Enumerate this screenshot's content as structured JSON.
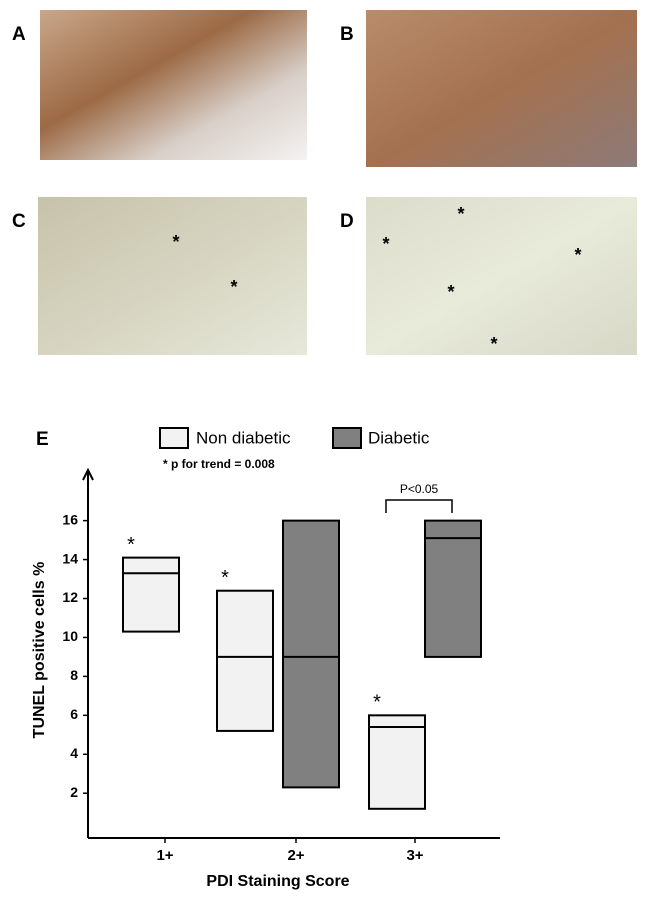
{
  "panels": [
    {
      "label": "A",
      "markers": []
    },
    {
      "label": "B",
      "markers": []
    },
    {
      "label": "C",
      "markers": [
        "*",
        "*"
      ]
    },
    {
      "label": "D",
      "markers": [
        "*",
        "*",
        "*",
        "*",
        "*"
      ]
    }
  ],
  "chart_data": {
    "type": "box",
    "label": "E",
    "note": "* p for trend = 0.008",
    "xlabel": "PDI Staining Score",
    "ylabel": "TUNEL positive cells %",
    "categories": [
      "1+",
      "2+",
      "3+"
    ],
    "ylim": [
      -0.3,
      18.6
    ],
    "yticks": [
      2,
      4,
      6,
      8,
      10,
      12,
      14,
      16
    ],
    "series": [
      {
        "name": "Non diabetic",
        "color": "#f2f2f2",
        "low": [
          10.3,
          5.2,
          1.2
        ],
        "median": [
          13.3,
          9,
          5.4
        ],
        "high": [
          14.1,
          12.4,
          6
        ],
        "markers": [
          "*",
          "*",
          "*"
        ]
      },
      {
        "name": "Diabetic",
        "color": "#808080",
        "low": [
          null,
          2.3,
          9
        ],
        "median": [
          null,
          9,
          15.1
        ],
        "high": [
          null,
          16,
          16
        ]
      }
    ],
    "annotation": "P<0.05"
  }
}
